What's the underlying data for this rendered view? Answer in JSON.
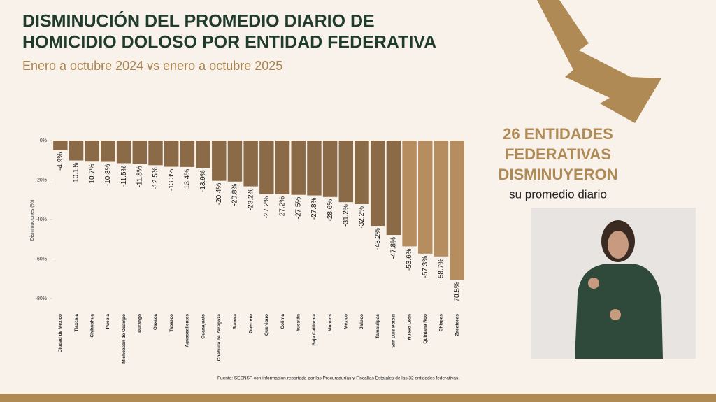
{
  "title_lines": [
    "DISMINUCIÓN DEL PROMEDIO DIARIO DE",
    "HOMICIDIO DOLOSO POR ENTIDAD FEDERATIVA"
  ],
  "subtitle": "Enero a octubre 2024 vs enero a octubre 2025",
  "highlight_lines": [
    "26 ENTIDADES",
    "FEDERATIVAS",
    "DISMINUYERON"
  ],
  "highlight_sub": "su promedio diario",
  "source": "Fuente: SESNSP con información reportada por las Procuradurías y Fiscalías Estatales de las 32 entidades federativas.",
  "chart_data": {
    "type": "bar",
    "y_label": "Disminuciones (%)",
    "categories": [
      "Ciudad de México",
      "Tlaxcala",
      "Chihuahua",
      "Puebla",
      "Michoacán de Ocampo",
      "Durango",
      "Oaxaca",
      "Tabasco",
      "Aguascalientes",
      "Guanajuato",
      "Coahuila de Zaragoza",
      "Sonora",
      "Guerrero",
      "Querétaro",
      "Colima",
      "Yucatán",
      "Baja California",
      "Morelos",
      "México",
      "Jalisco",
      "Tamaulipas",
      "San Luis Potosí",
      "Nuevo León",
      "Quintana Roo",
      "Chiapas",
      "Zacatecas"
    ],
    "values": [
      -4.9,
      -10.1,
      -10.7,
      -10.8,
      -11.5,
      -11.8,
      -12.5,
      -13.3,
      -13.4,
      -13.9,
      -20.4,
      -20.8,
      -23.2,
      -27.2,
      -27.2,
      -27.5,
      -27.8,
      -28.6,
      -31.2,
      -32.2,
      -43.2,
      -47.8,
      -53.6,
      -57.3,
      -58.7,
      -70.5
    ],
    "value_labels": [
      "-4.9%",
      "-10.1%",
      "-10.7%",
      "-10.8%",
      "-11.5%",
      "-11.8%",
      "-12.5%",
      "-13.3%",
      "-13.4%",
      "-13.9%",
      "-20.4%",
      "-20.8%",
      "-23.2%",
      "-27.2%",
      "-27.2%",
      "-27.5%",
      "-27.8%",
      "-28.6%",
      "-31.2%",
      "-32.2%",
      "-43.2%",
      "-47.8%",
      "-53.6%",
      "-57.3%",
      "-58.7%",
      "-70.5%"
    ],
    "colors": [
      "#8a6a47",
      "#8a6a47",
      "#8a6a47",
      "#8a6a47",
      "#8a6a47",
      "#8a6a47",
      "#8a6a47",
      "#8a6a47",
      "#8a6a47",
      "#8a6a47",
      "#8a6a47",
      "#8a6a47",
      "#8a6a47",
      "#8a6a47",
      "#8a6a47",
      "#8a6a47",
      "#8a6a47",
      "#8a6a47",
      "#8a6a47",
      "#8a6a47",
      "#8a6a47",
      "#8a6a47",
      "#b58d5e",
      "#b58d5e",
      "#b58d5e",
      "#b58d5e"
    ],
    "ylim": [
      -80,
      0
    ],
    "yticks": [
      {
        "value": 0,
        "label": "0%"
      },
      {
        "value": -20,
        "label": "-20%"
      },
      {
        "value": -40,
        "label": "-40%"
      },
      {
        "value": -60,
        "label": "-60%"
      },
      {
        "value": -80,
        "label": "-80%"
      }
    ]
  }
}
